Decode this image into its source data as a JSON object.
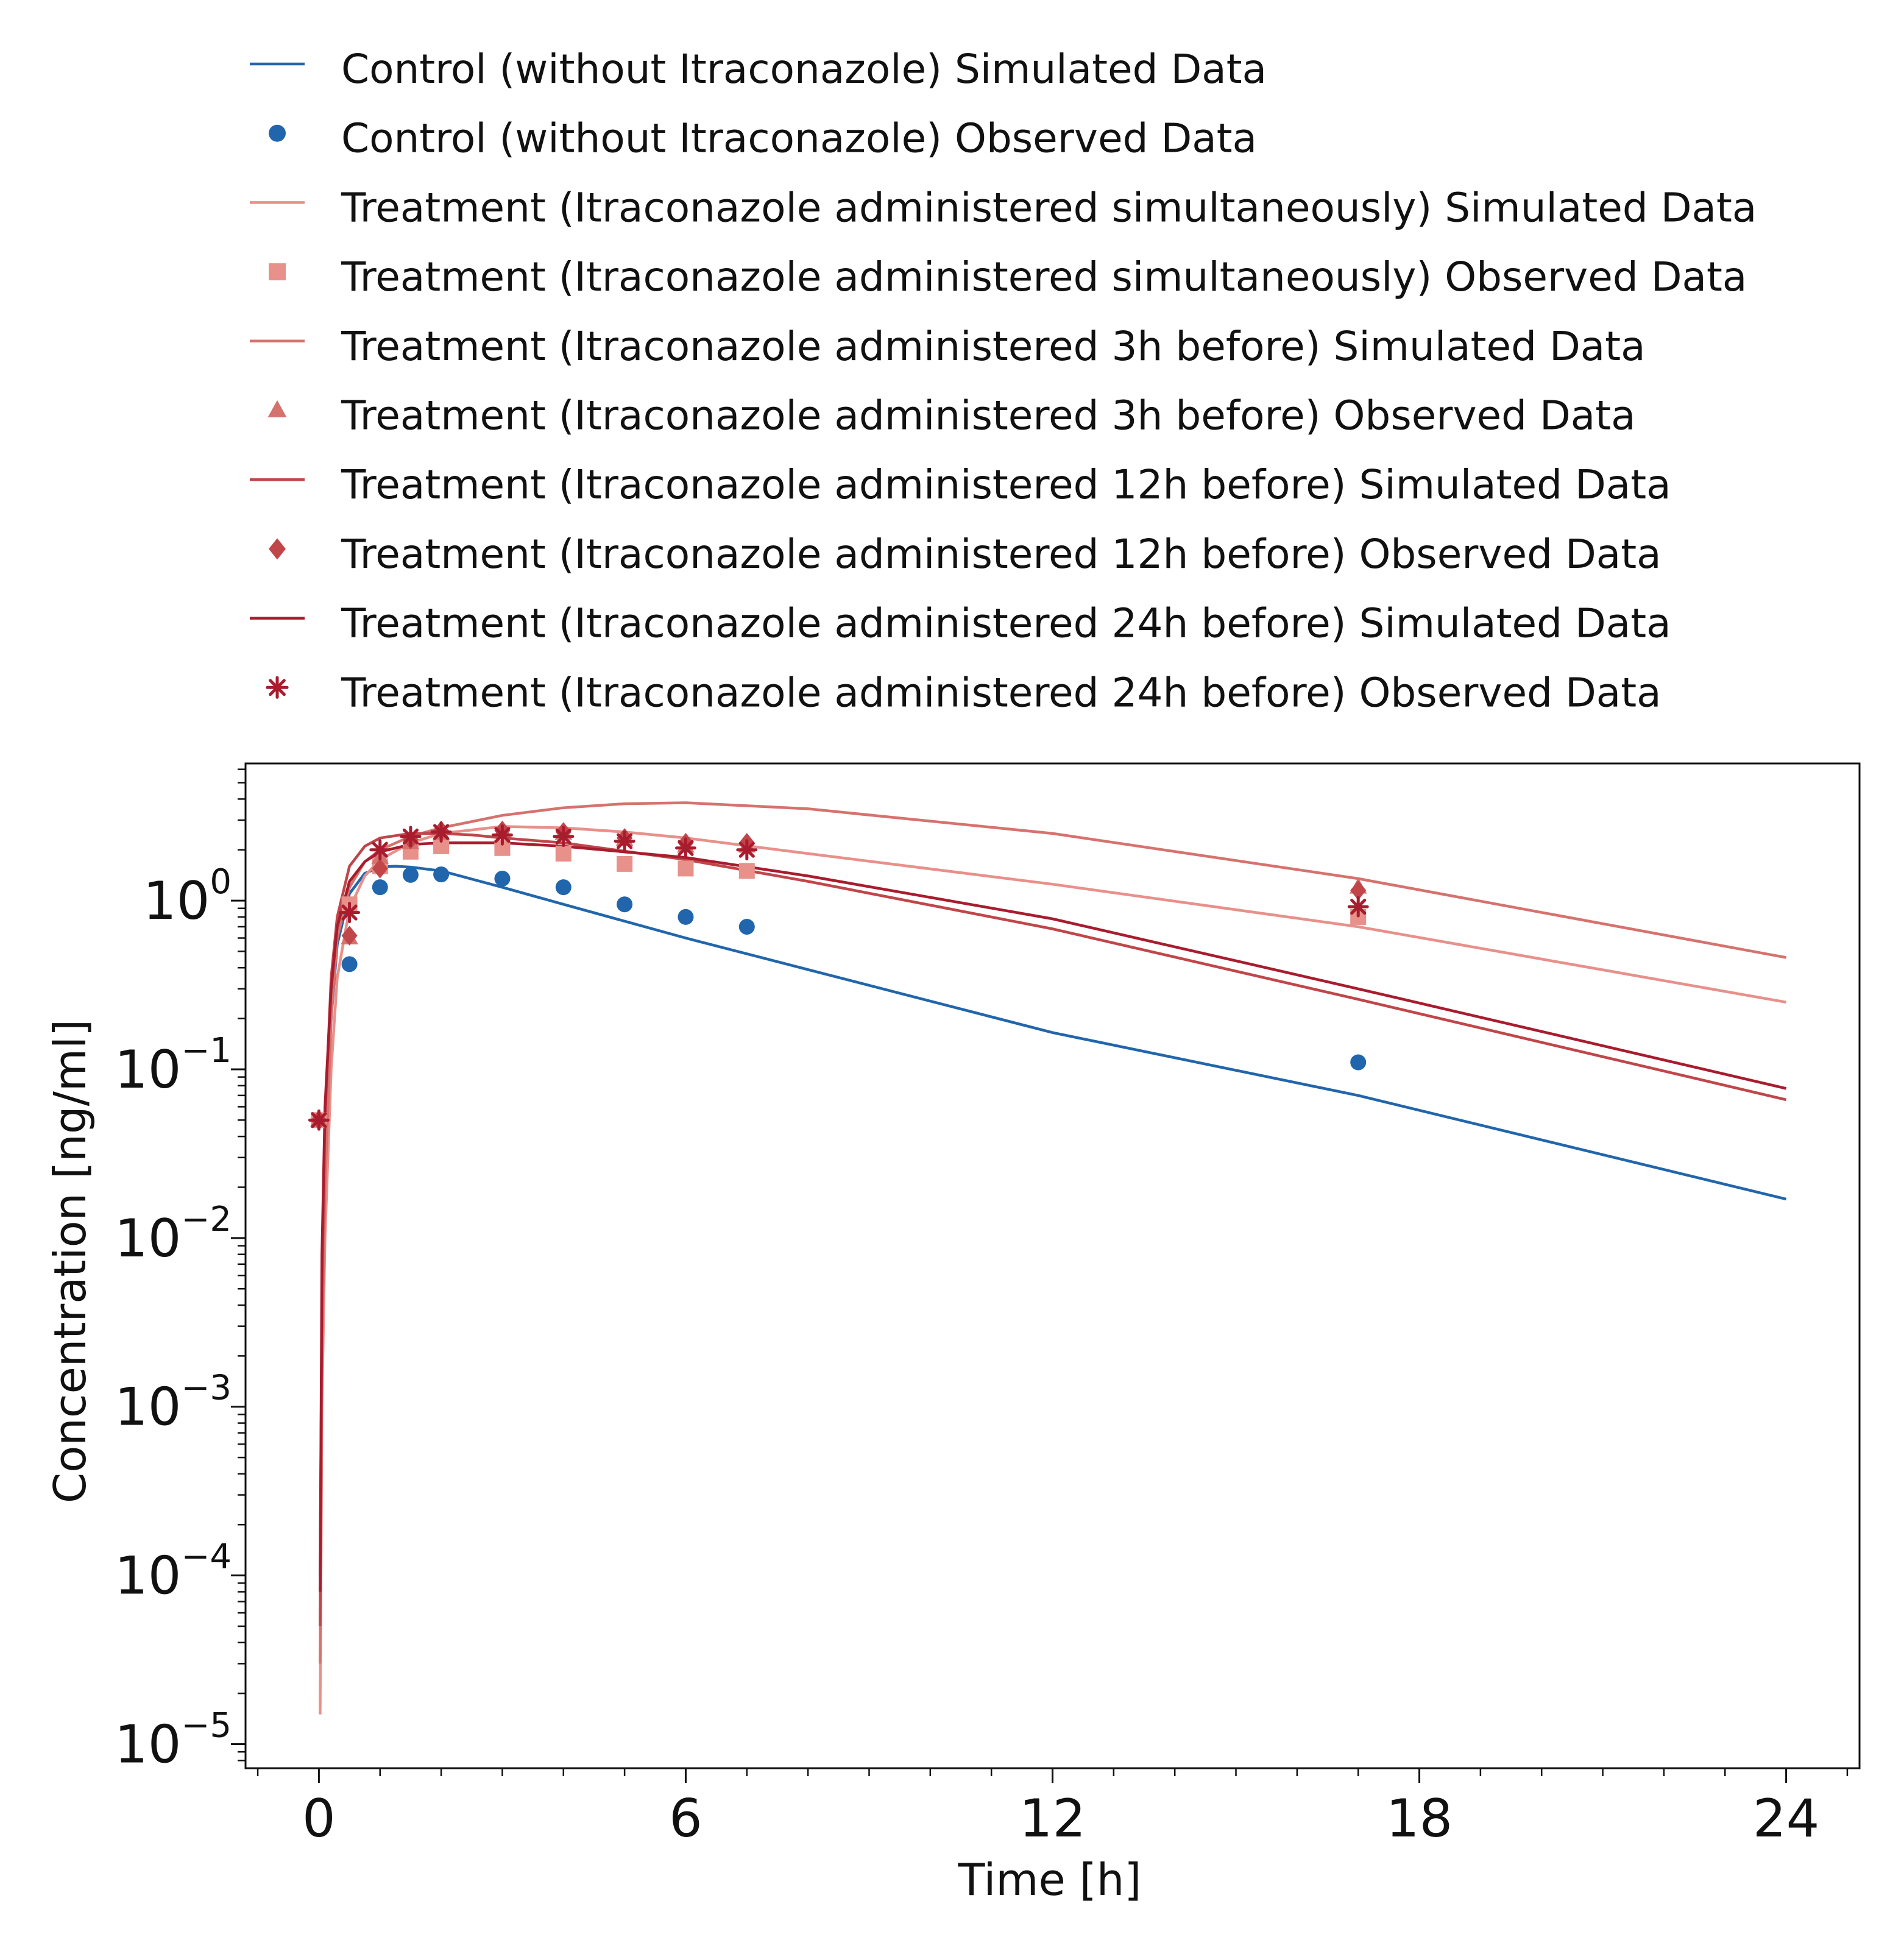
{
  "chart_data": {
    "type": "line",
    "title": "",
    "xlabel": "Time [h]",
    "ylabel": "Concentration [ng/ml]",
    "x_scale": "linear",
    "y_scale": "log",
    "xlim": [
      -1.2,
      25.2
    ],
    "ylim": [
      7.2e-06,
      6.5
    ],
    "x_ticks": [
      0,
      6,
      12,
      18,
      24
    ],
    "x_tick_labels": [
      "0",
      "6",
      "12",
      "18",
      "24"
    ],
    "y_ticks": [
      1e-05,
      0.0001,
      0.001,
      0.01,
      0.1,
      1
    ],
    "y_tick_labels": [
      {
        "base": "10",
        "exp": "−5"
      },
      {
        "base": "10",
        "exp": "−4"
      },
      {
        "base": "10",
        "exp": "−3"
      },
      {
        "base": "10",
        "exp": "−2"
      },
      {
        "base": "10",
        "exp": "−1"
      },
      {
        "base": "10",
        "exp": "0"
      }
    ],
    "grid": false,
    "legend_position": "top",
    "series": [
      {
        "name": "Control (without Itraconazole) Simulated Data",
        "kind": "line",
        "color": "#2166ac",
        "x": [
          0.02,
          0.05,
          0.1,
          0.2,
          0.3,
          0.5,
          0.75,
          1.0,
          1.25,
          1.5,
          2,
          3,
          4,
          6,
          8,
          12,
          17,
          24
        ],
        "y": [
          0.0001,
          0.004,
          0.03,
          0.2,
          0.55,
          1.1,
          1.45,
          1.58,
          1.6,
          1.58,
          1.5,
          1.2,
          0.95,
          0.6,
          0.39,
          0.165,
          0.07,
          0.017
        ]
      },
      {
        "name": "Control (without Itraconazole) Observed Data",
        "kind": "marker",
        "marker": "circle",
        "color": "#2166ac",
        "x": [
          0,
          0.5,
          1,
          1.5,
          2,
          3,
          4,
          5,
          6,
          7,
          17
        ],
        "y": [
          0.05,
          0.42,
          1.2,
          1.42,
          1.43,
          1.35,
          1.2,
          0.95,
          0.8,
          0.7,
          0.11
        ]
      },
      {
        "name": "Treatment (Itraconazole administered simultaneously) Simulated Data",
        "kind": "line",
        "color": "#e8908a",
        "x": [
          0.02,
          0.05,
          0.1,
          0.2,
          0.3,
          0.5,
          0.75,
          1,
          1.5,
          2,
          3,
          4,
          5,
          6,
          8,
          12,
          17,
          24
        ],
        "y": [
          1.5e-05,
          0.001,
          0.01,
          0.1,
          0.35,
          0.9,
          1.4,
          1.75,
          2.2,
          2.5,
          2.75,
          2.7,
          2.55,
          2.35,
          1.9,
          1.25,
          0.7,
          0.25
        ]
      },
      {
        "name": "Treatment (Itraconazole administered simultaneously) Observed Data",
        "kind": "marker",
        "marker": "square",
        "color": "#e8908a",
        "x": [
          0,
          0.5,
          1,
          1.5,
          2,
          3,
          4,
          5,
          6,
          7,
          17
        ],
        "y": [
          0.05,
          0.95,
          1.6,
          1.95,
          2.1,
          2.05,
          1.9,
          1.65,
          1.55,
          1.5,
          0.8
        ]
      },
      {
        "name": "Treatment (Itraconazole administered 3h before) Simulated Data",
        "kind": "line",
        "color": "#d6726e",
        "x": [
          0.02,
          0.05,
          0.1,
          0.2,
          0.3,
          0.5,
          0.75,
          1,
          1.5,
          2,
          3,
          4,
          5,
          6,
          8,
          12,
          17,
          24
        ],
        "y": [
          3e-05,
          0.002,
          0.02,
          0.2,
          0.6,
          1.2,
          1.7,
          2.0,
          2.4,
          2.7,
          3.2,
          3.55,
          3.75,
          3.8,
          3.5,
          2.5,
          1.35,
          0.46
        ]
      },
      {
        "name": "Treatment (Itraconazole administered 3h before) Observed Data",
        "kind": "marker",
        "marker": "triangle",
        "color": "#d6726e",
        "x": [
          0,
          0.5,
          1,
          1.5,
          2,
          3,
          4,
          5,
          6,
          7,
          17
        ],
        "y": [
          0.05,
          0.6,
          1.8,
          2.2,
          2.5,
          2.6,
          2.5,
          2.3,
          2.1,
          2.1,
          1.2
        ]
      },
      {
        "name": "Treatment (Itraconazole administered 12h before) Simulated Data",
        "kind": "line",
        "color": "#c0464a",
        "x": [
          0.02,
          0.05,
          0.1,
          0.2,
          0.3,
          0.5,
          0.75,
          1,
          1.5,
          2,
          2.5,
          3,
          4,
          6,
          8,
          12,
          17,
          24
        ],
        "y": [
          5e-05,
          0.005,
          0.05,
          0.35,
          0.8,
          1.6,
          2.1,
          2.35,
          2.5,
          2.5,
          2.45,
          2.35,
          2.2,
          1.75,
          1.3,
          0.68,
          0.26,
          0.066
        ]
      },
      {
        "name": "Treatment (Itraconazole administered 12h before) Observed Data",
        "kind": "marker",
        "marker": "diamond",
        "color": "#c0464a",
        "x": [
          0,
          0.5,
          1,
          1.5,
          2,
          3,
          4,
          5,
          6,
          7,
          17
        ],
        "y": [
          0.05,
          0.62,
          1.55,
          2.3,
          2.6,
          2.6,
          2.55,
          2.35,
          2.2,
          2.2,
          1.15
        ]
      },
      {
        "name": "Treatment (Itraconazole administered 24h before) Simulated Data",
        "kind": "line",
        "color": "#a81c2e",
        "x": [
          0.02,
          0.05,
          0.1,
          0.2,
          0.3,
          0.5,
          0.75,
          1,
          1.5,
          2,
          3,
          4,
          6,
          8,
          12,
          17,
          24
        ],
        "y": [
          8e-05,
          0.008,
          0.06,
          0.3,
          0.7,
          1.3,
          1.7,
          1.95,
          2.15,
          2.2,
          2.2,
          2.1,
          1.8,
          1.4,
          0.78,
          0.3,
          0.077
        ]
      },
      {
        "name": "Treatment (Itraconazole administered 24h before) Observed Data",
        "kind": "marker",
        "marker": "star",
        "color": "#a81c2e",
        "x": [
          0,
          0.5,
          1,
          1.5,
          2,
          3,
          4,
          5,
          6,
          7,
          17
        ],
        "y": [
          0.05,
          0.85,
          2.0,
          2.4,
          2.55,
          2.45,
          2.4,
          2.25,
          2.05,
          2.0,
          0.92
        ]
      }
    ]
  }
}
